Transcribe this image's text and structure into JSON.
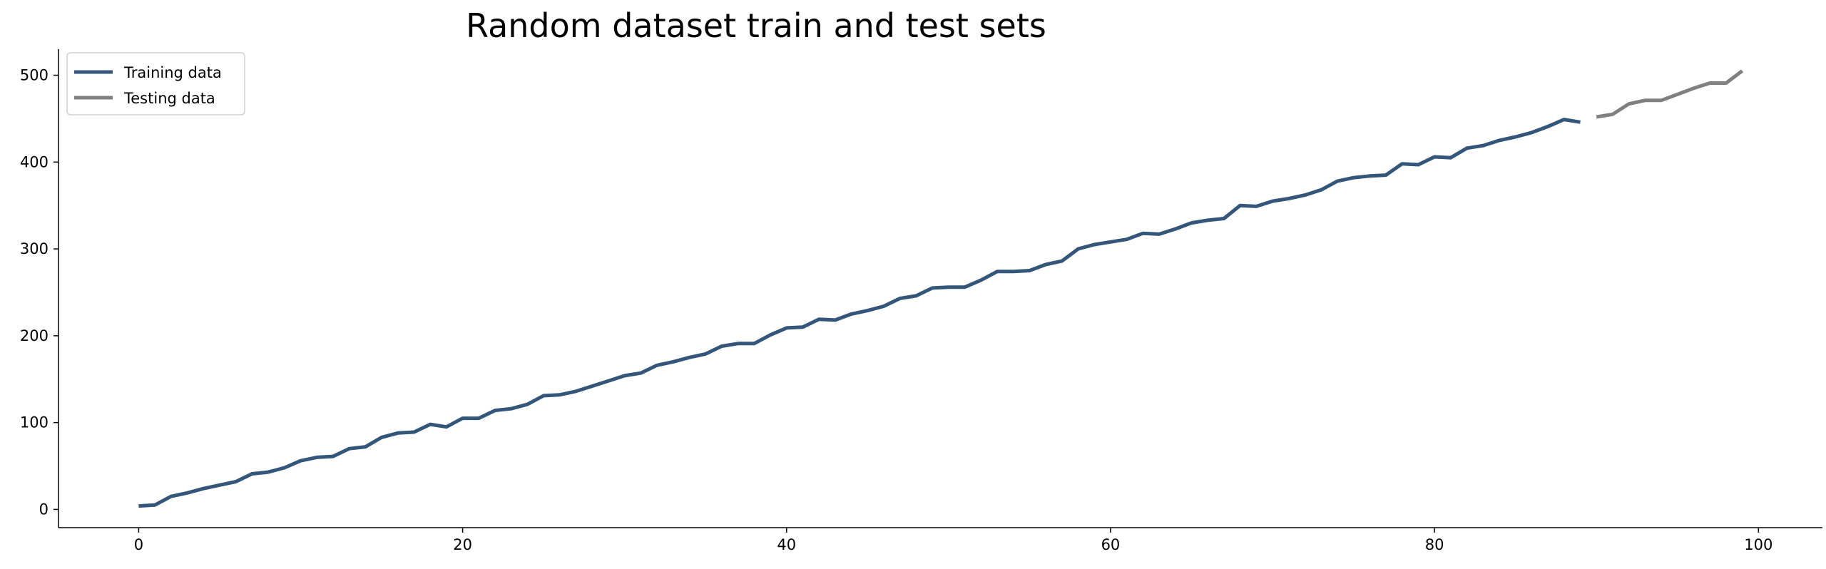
{
  "chart_data": {
    "type": "line",
    "title": "Random dataset train and test sets",
    "xlabel": "",
    "ylabel": "",
    "xlim": [
      -4.95,
      103.95
    ],
    "ylim": [
      -21,
      530
    ],
    "xticks": [
      0,
      20,
      40,
      60,
      80,
      100
    ],
    "yticks": [
      0,
      100,
      200,
      300,
      400,
      500
    ],
    "grid": false,
    "legend_position": "top-left",
    "series": [
      {
        "name": "Training data",
        "color": "#34567a",
        "x": [
          0,
          1,
          2,
          3,
          4,
          5,
          6,
          7,
          8,
          9,
          10,
          11,
          12,
          13,
          14,
          15,
          16,
          17,
          18,
          19,
          20,
          21,
          22,
          23,
          24,
          25,
          26,
          27,
          28,
          29,
          30,
          31,
          32,
          33,
          34,
          35,
          36,
          37,
          38,
          39,
          40,
          41,
          42,
          43,
          44,
          45,
          46,
          47,
          48,
          49,
          50,
          51,
          52,
          53,
          54,
          55,
          56,
          57,
          58,
          59,
          60,
          61,
          62,
          63,
          64,
          65,
          66,
          67,
          68,
          69,
          70,
          71,
          72,
          73,
          74,
          75,
          76,
          77,
          78,
          79,
          80,
          81,
          82,
          83,
          84,
          85,
          86,
          87,
          88,
          89
        ],
        "y": [
          4,
          5,
          15,
          19,
          24,
          28,
          32,
          41,
          43,
          48,
          56,
          60,
          61,
          70,
          72,
          83,
          88,
          89,
          98,
          95,
          105,
          105,
          114,
          116,
          121,
          131,
          132,
          136,
          142,
          148,
          154,
          157,
          166,
          170,
          175,
          179,
          188,
          191,
          191,
          201,
          209,
          210,
          219,
          218,
          225,
          229,
          234,
          243,
          246,
          255,
          256,
          256,
          264,
          274,
          274,
          275,
          282,
          286,
          300,
          305,
          308,
          311,
          318,
          317,
          323,
          330,
          333,
          335,
          350,
          349,
          355,
          358,
          362,
          368,
          378,
          382,
          384,
          385,
          398,
          397,
          406,
          405,
          416,
          419,
          425,
          429,
          434,
          441,
          449,
          446
        ]
      },
      {
        "name": "Testing data",
        "color": "#808080",
        "x": [
          90,
          91,
          92,
          93,
          94,
          95,
          96,
          97,
          98,
          99
        ],
        "y": [
          452,
          455,
          467,
          471,
          471,
          478,
          485,
          491,
          491,
          505
        ]
      }
    ]
  }
}
